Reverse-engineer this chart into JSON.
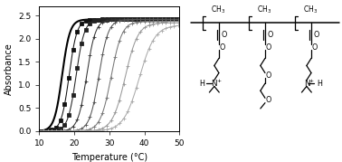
{
  "xlim": [
    10,
    50
  ],
  "ylim": [
    0,
    2.7
  ],
  "xlabel": "Temperature (°C)",
  "ylabel": "Absorbance",
  "yticks": [
    0.0,
    0.5,
    1.0,
    1.5,
    2.0,
    2.5
  ],
  "xticks": [
    10,
    20,
    30,
    40,
    50
  ],
  "bg_color": "#ffffff",
  "curves": [
    {
      "midpoint": 16.5,
      "steepness": 0.9,
      "ymax": 2.42,
      "color": "#000000",
      "lw": 1.5,
      "marker": null,
      "ms": 2.5
    },
    {
      "midpoint": 18.5,
      "steepness": 0.9,
      "ymax": 2.42,
      "color": "#111111",
      "lw": 0.75,
      "marker": "s",
      "ms": 2.2
    },
    {
      "midpoint": 20.5,
      "steepness": 0.85,
      "ymax": 2.42,
      "color": "#222222",
      "lw": 0.75,
      "marker": "s",
      "ms": 2.2
    },
    {
      "midpoint": 23.5,
      "steepness": 0.8,
      "ymax": 2.42,
      "color": "#333333",
      "lw": 0.75,
      "marker": "+",
      "ms": 3.0
    },
    {
      "midpoint": 27.0,
      "steepness": 0.75,
      "ymax": 2.42,
      "color": "#555555",
      "lw": 0.75,
      "marker": "+",
      "ms": 3.0
    },
    {
      "midpoint": 30.5,
      "steepness": 0.65,
      "ymax": 2.38,
      "color": "#777777",
      "lw": 0.75,
      "marker": "+",
      "ms": 3.0
    },
    {
      "midpoint": 34.5,
      "steepness": 0.55,
      "ymax": 2.35,
      "color": "#999999",
      "lw": 0.75,
      "marker": "+",
      "ms": 3.0
    },
    {
      "midpoint": 38.5,
      "steepness": 0.45,
      "ymax": 2.3,
      "color": "#aaaaaa",
      "lw": 0.75,
      "marker": "+",
      "ms": 3.0
    }
  ],
  "fig_width": 3.78,
  "fig_height": 1.79,
  "dpi": 100
}
